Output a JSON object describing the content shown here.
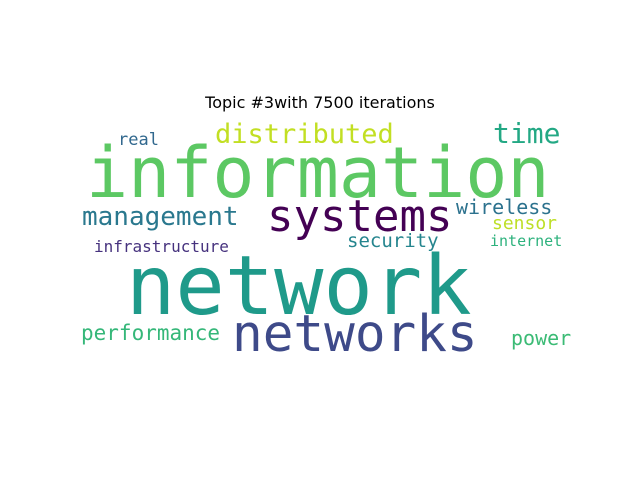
{
  "title": "Topic #3with 7500 iterations",
  "words": [
    {
      "text": "information",
      "color": "#5cc863"
    },
    {
      "text": "network",
      "color": "#1f9a8a"
    },
    {
      "text": "networks",
      "color": "#3e4a89"
    },
    {
      "text": "systems",
      "color": "#440154"
    },
    {
      "text": "distributed",
      "color": "#c2df23"
    },
    {
      "text": "time",
      "color": "#23a884"
    },
    {
      "text": "management",
      "color": "#2a788e"
    },
    {
      "text": "wireless",
      "color": "#2c728e"
    },
    {
      "text": "sensor",
      "color": "#bddf26"
    },
    {
      "text": "security",
      "color": "#25858e"
    },
    {
      "text": "infrastructure",
      "color": "#46327e"
    },
    {
      "text": "internet",
      "color": "#2db27d"
    },
    {
      "text": "real",
      "color": "#31688e"
    },
    {
      "text": "performance",
      "color": "#35b779"
    },
    {
      "text": "power",
      "color": "#3bbb75"
    }
  ]
}
